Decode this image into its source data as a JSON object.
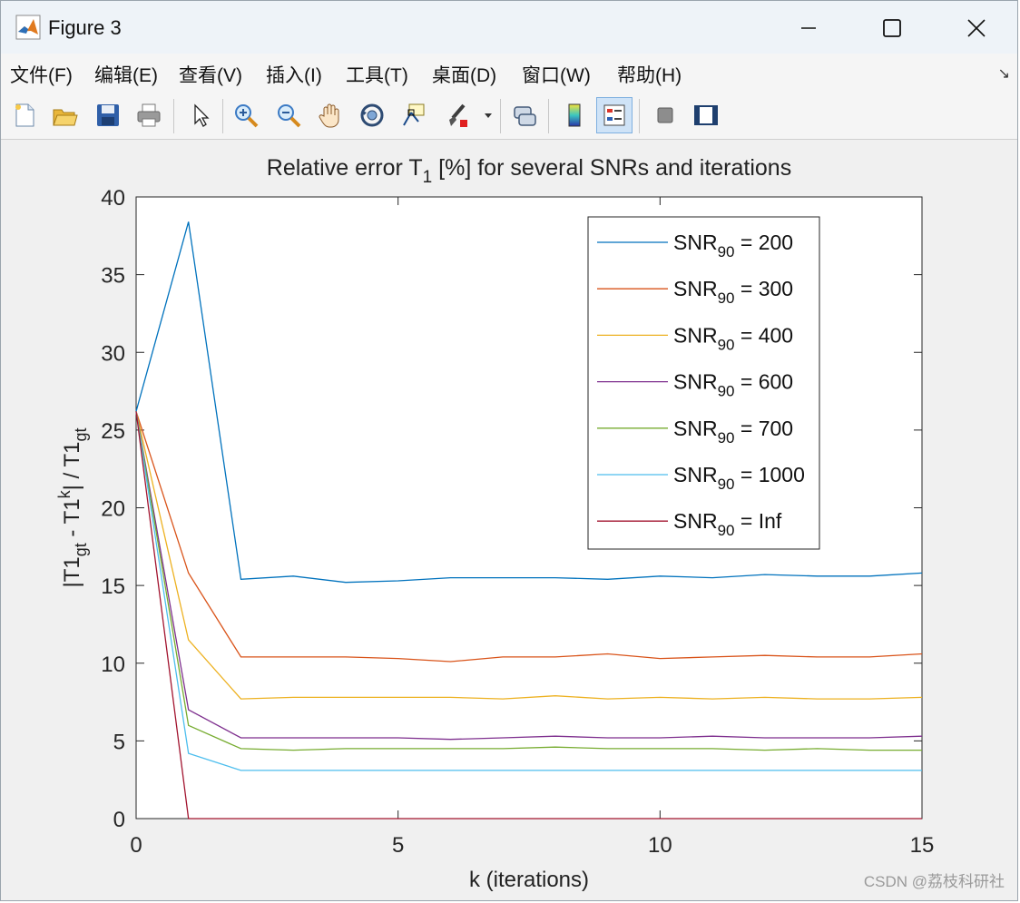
{
  "window": {
    "title": "Figure 3",
    "controls": {
      "minimize": "—",
      "maximize": "☐",
      "close": "✕"
    }
  },
  "menu": {
    "items": [
      "文件(F)",
      "编辑(E)",
      "查看(V)",
      "插入(I)",
      "工具(T)",
      "桌面(D)",
      "窗口(W)",
      "帮助(H)"
    ],
    "corner": "↘"
  },
  "toolbar": {
    "icons": [
      "new-figure-icon",
      "open-file-icon",
      "save-icon",
      "print-icon",
      "pointer-icon",
      "zoom-in-icon",
      "zoom-out-icon",
      "pan-hand-icon",
      "rotate-3d-icon",
      "data-cursor-icon",
      "brush-icon",
      "link-plot-icon",
      "colorbar-icon",
      "legend-icon",
      "hide-plot-tools-icon",
      "show-plot-tools-icon"
    ]
  },
  "chart_data": {
    "type": "line",
    "title_main": "Relative error T",
    "title_sub": "1",
    "title_rest": " [%] for several SNRs and iterations",
    "xlabel": "k (iterations)",
    "ylabel_parts": {
      "a": "|T1",
      "b": "gt",
      "c": " - T1",
      "d": "k",
      "e": "| / T1",
      "f": "gt"
    },
    "xlim": [
      0,
      15
    ],
    "ylim": [
      0,
      40
    ],
    "xticks": [
      0,
      5,
      10,
      15
    ],
    "yticks": [
      0,
      5,
      10,
      15,
      20,
      25,
      30,
      35,
      40
    ],
    "grid": false,
    "legend_position": "top-right",
    "x": [
      0,
      1,
      2,
      3,
      4,
      5,
      6,
      7,
      8,
      9,
      10,
      11,
      12,
      13,
      14,
      15
    ],
    "series": [
      {
        "name": "SNR",
        "sub": "90",
        "suffix": " = 200",
        "color": "#0072bd",
        "values": [
          26.2,
          38.4,
          15.4,
          15.6,
          15.2,
          15.3,
          15.5,
          15.5,
          15.5,
          15.4,
          15.6,
          15.5,
          15.7,
          15.6,
          15.6,
          15.8
        ]
      },
      {
        "name": "SNR",
        "sub": "90",
        "suffix": " = 300",
        "color": "#d95319",
        "values": [
          26.2,
          15.8,
          10.4,
          10.4,
          10.4,
          10.3,
          10.1,
          10.4,
          10.4,
          10.6,
          10.3,
          10.4,
          10.5,
          10.4,
          10.4,
          10.6
        ]
      },
      {
        "name": "SNR",
        "sub": "90",
        "suffix": " = 400",
        "color": "#edb120",
        "values": [
          26.2,
          11.5,
          7.7,
          7.8,
          7.8,
          7.8,
          7.8,
          7.7,
          7.9,
          7.7,
          7.8,
          7.7,
          7.8,
          7.7,
          7.7,
          7.8
        ]
      },
      {
        "name": "SNR",
        "sub": "90",
        "suffix": " = 600",
        "color": "#7e2f8e",
        "values": [
          26.2,
          7.0,
          5.2,
          5.2,
          5.2,
          5.2,
          5.1,
          5.2,
          5.3,
          5.2,
          5.2,
          5.3,
          5.2,
          5.2,
          5.2,
          5.3
        ]
      },
      {
        "name": "SNR",
        "sub": "90",
        "suffix": " = 700",
        "color": "#77ac30",
        "values": [
          26.2,
          6.0,
          4.5,
          4.4,
          4.5,
          4.5,
          4.5,
          4.5,
          4.6,
          4.5,
          4.5,
          4.5,
          4.4,
          4.5,
          4.4,
          4.4
        ]
      },
      {
        "name": "SNR",
        "sub": "90",
        "suffix": " = 1000",
        "color": "#4dbeee",
        "values": [
          26.2,
          4.2,
          3.1,
          3.1,
          3.1,
          3.1,
          3.1,
          3.1,
          3.1,
          3.1,
          3.1,
          3.1,
          3.1,
          3.1,
          3.1,
          3.1
        ]
      },
      {
        "name": "SNR",
        "sub": "90",
        "suffix": " = Inf",
        "color": "#a2142f",
        "values": [
          26.2,
          0.0,
          0.0,
          0.0,
          0.0,
          0.0,
          0.0,
          0.0,
          0.0,
          0.0,
          0.0,
          0.0,
          0.0,
          0.0,
          0.0,
          0.0
        ]
      }
    ]
  },
  "watermark": "CSDN @荔枝科研社"
}
